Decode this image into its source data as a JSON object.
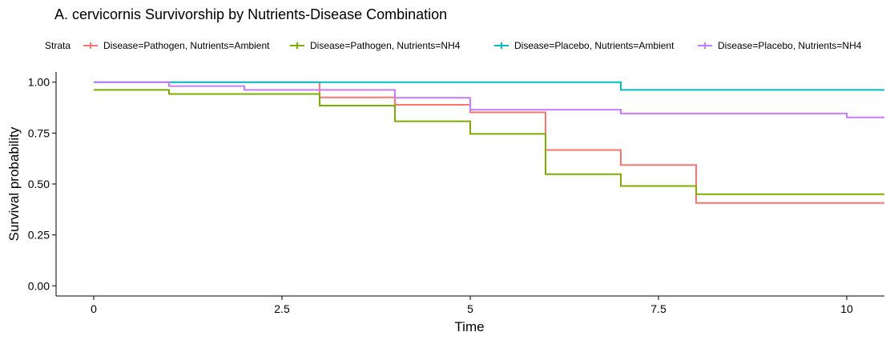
{
  "chart_data": {
    "type": "line",
    "step": true,
    "title": "A. cervicornis Survivorship by Nutrients-Disease Combination",
    "xlabel": "Time",
    "ylabel": "Survival probability",
    "xlim": [
      -0.5,
      10.5
    ],
    "ylim": [
      -0.05,
      1.05
    ],
    "x_ticks": [
      0,
      2.5,
      5,
      7.5,
      10
    ],
    "x_tick_labels": [
      "0",
      "2.5",
      "5",
      "7.5",
      "10"
    ],
    "y_ticks": [
      0,
      0.25,
      0.5,
      0.75,
      1.0
    ],
    "y_tick_labels": [
      "0.00",
      "0.25",
      "0.50",
      "0.75",
      "1.00"
    ],
    "grid": false,
    "legend_title": "Strata",
    "legend_position": "top",
    "series": [
      {
        "name": "Disease=Pathogen, Nutrients=Ambient",
        "color": "#F8766D",
        "x": [
          0,
          3,
          4,
          5,
          6,
          7,
          8,
          10.5
        ],
        "y": [
          1.0,
          0.925,
          0.889,
          0.852,
          0.667,
          0.593,
          0.407,
          0.407
        ]
      },
      {
        "name": "Disease=Pathogen, Nutrients=NH4",
        "color": "#7CAE00",
        "x": [
          0,
          1,
          3,
          4,
          5,
          6,
          7,
          8,
          10.5
        ],
        "y": [
          0.962,
          0.942,
          0.885,
          0.808,
          0.746,
          0.548,
          0.49,
          0.45,
          0.45
        ]
      },
      {
        "name": "Disease=Placebo, Nutrients=Ambient",
        "color": "#00BFC4",
        "x": [
          0,
          7,
          10.5
        ],
        "y": [
          1.0,
          0.962,
          0.962
        ]
      },
      {
        "name": "Disease=Placebo, Nutrients=NH4",
        "color": "#C77CFF",
        "x": [
          0,
          1,
          2,
          4,
          5,
          7,
          10,
          10.5
        ],
        "y": [
          1.0,
          0.981,
          0.962,
          0.923,
          0.865,
          0.846,
          0.827,
          0.827
        ]
      }
    ]
  }
}
